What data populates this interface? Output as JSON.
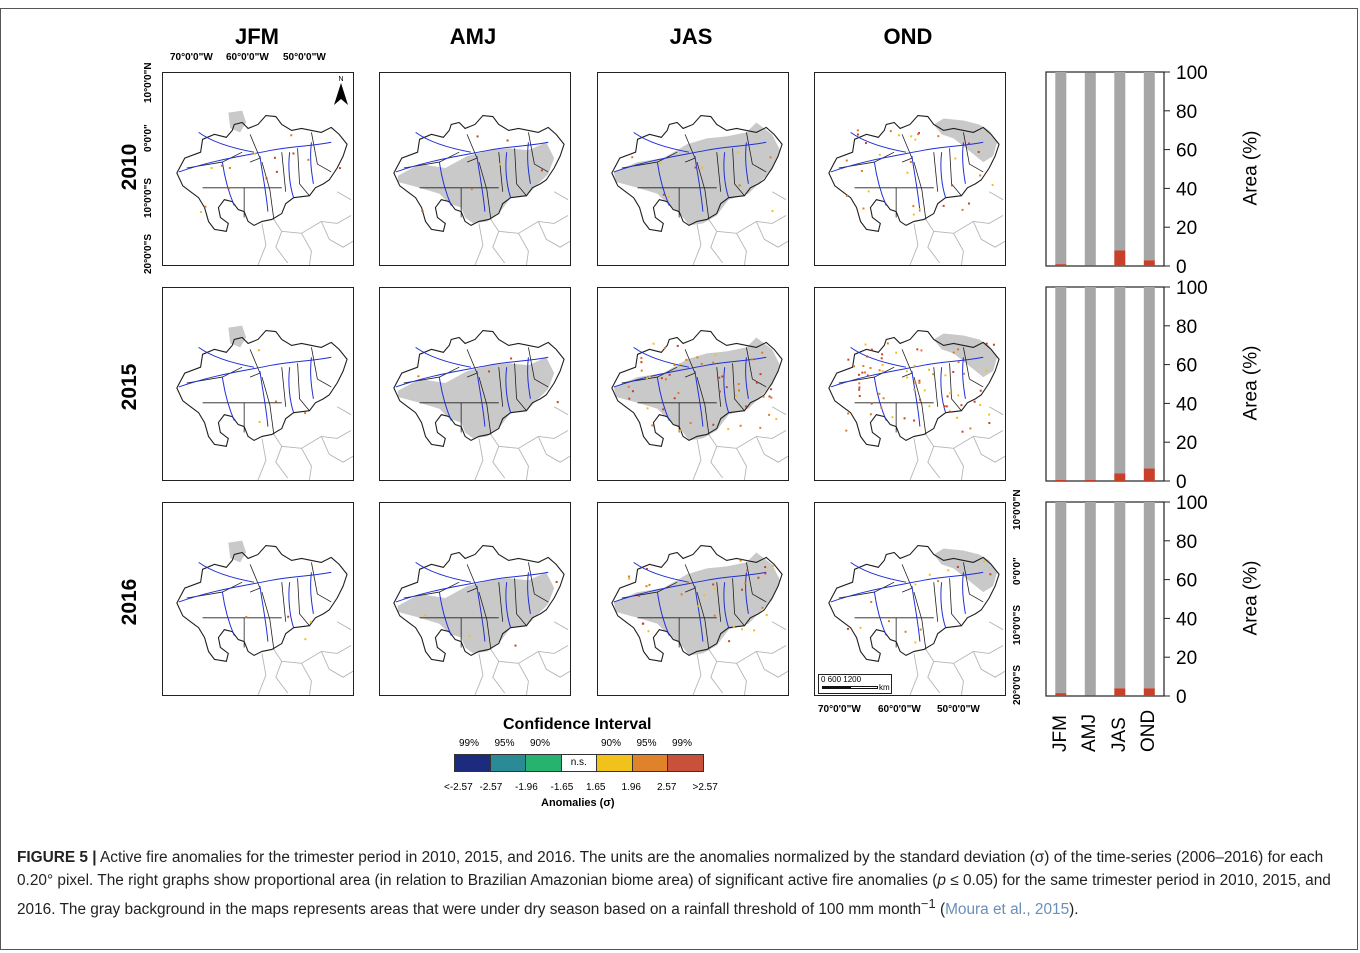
{
  "figure": {
    "columns": [
      "JFM",
      "AMJ",
      "JAS",
      "OND"
    ],
    "rows": [
      "2010",
      "2015",
      "2016"
    ],
    "coords_top": [
      "70°0'0\"W",
      "60°0'0\"W",
      "50°0'0\"W"
    ],
    "coords_bottom": [
      "70°0'0\"W",
      "60°0'0\"W",
      "50°0'0\"W"
    ],
    "coords_left": [
      "10°0'0\"N",
      "0°0'0\"",
      "10°0'0\"S",
      "20°0'0\"S"
    ],
    "coords_right": [
      "10°0'0\"N",
      "0°0'0\"",
      "10°0'0\"S",
      "20°0'0\"S"
    ],
    "north_label": "N",
    "scale": {
      "label": "0   600  1200",
      "unit": "km"
    },
    "colors": {
      "dry_season": "#c9c9c9",
      "boundary": "#1e1e1e",
      "river": "#1f2ed6",
      "fire_red": "#c8402a",
      "fire_orange": "#e07a22",
      "fire_yellow": "#f0c01c"
    }
  },
  "chart_data": [
    {
      "type": "bar",
      "row": "2010",
      "categories": [
        "JFM",
        "AMJ",
        "JAS",
        "OND"
      ],
      "series": [
        {
          "values": [
            99,
            99,
            92,
            97
          ],
          "color": "#a6a6a6"
        },
        {
          "values": [
            1,
            0.5,
            8,
            3
          ],
          "color": "#c8402a"
        }
      ],
      "ylabel": "Area (%)",
      "ylim": [
        0,
        100
      ],
      "yticks": [
        "0",
        "20",
        "40",
        "60",
        "80",
        "100"
      ]
    },
    {
      "type": "bar",
      "row": "2015",
      "categories": [
        "JFM",
        "AMJ",
        "JAS",
        "OND"
      ],
      "series": [
        {
          "values": [
            99.5,
            99.5,
            96,
            93.5
          ],
          "color": "#a6a6a6"
        },
        {
          "values": [
            0.5,
            0.5,
            4,
            6.5
          ],
          "color": "#c8402a"
        }
      ],
      "ylabel": "Area (%)",
      "ylim": [
        0,
        100
      ],
      "yticks": [
        "0",
        "20",
        "40",
        "60",
        "80",
        "100"
      ]
    },
    {
      "type": "bar",
      "row": "2016",
      "categories": [
        "JFM",
        "AMJ",
        "JAS",
        "OND"
      ],
      "series": [
        {
          "values": [
            98.5,
            99.5,
            96,
            96
          ],
          "color": "#a6a6a6"
        },
        {
          "values": [
            1.5,
            0.5,
            4,
            4
          ],
          "color": "#c8402a"
        }
      ],
      "ylabel": "Area (%)",
      "ylim": [
        0,
        100
      ],
      "yticks": [
        "0",
        "20",
        "40",
        "60",
        "80",
        "100"
      ]
    }
  ],
  "legend": {
    "title": "Confidence Interval",
    "percent_labels": [
      "99%",
      "95%",
      "90%",
      "90%",
      "95%",
      "99%"
    ],
    "bins": [
      {
        "color": "#1c2b7e",
        "text": ""
      },
      {
        "color": "#2a8a96",
        "text": ""
      },
      {
        "color": "#27b36d",
        "text": ""
      },
      {
        "color": "#ffffff",
        "text": "n.s."
      },
      {
        "color": "#f2c21c",
        "text": ""
      },
      {
        "color": "#e0822a",
        "text": ""
      },
      {
        "color": "#c9503a",
        "text": ""
      }
    ],
    "ticks": [
      "<-2.57",
      "-2.57",
      "-1.96",
      "-1.65",
      "1.65",
      "1.96",
      "2.57",
      ">2.57"
    ],
    "axis_label": "Anomalies (σ)"
  },
  "caption": {
    "label": "FIGURE 5 |",
    "text1": " Active fire anomalies for the trimester period in 2010, 2015, and 2016. The units are the anomalies normalized by the standard deviation (σ) of the time-series (2006–2016) for each 0.20° pixel. The right graphs show proportional area (in relation to Brazilian Amazonian biome area) of significant active fire anomalies (",
    "p_symbol": "p",
    "text2": " ≤ 0.05) for the same trimester period in 2010, 2015, and 2016. The gray background in the maps represents areas that were under dry season based on a rainfall threshold of 100 mm month",
    "superscript": "−1",
    "text3": " (",
    "citation": "Moura et al., 2015",
    "text4": ")."
  }
}
